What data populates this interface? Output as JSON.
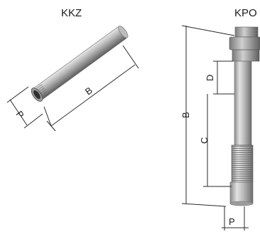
{
  "left_part": {
    "title": "KKZ",
    "dimensions": {
      "diameter": "P",
      "length": "B"
    }
  },
  "right_part": {
    "title": "KPO",
    "dimensions": {
      "total_length": "B",
      "thread_length": "C",
      "offset": "D",
      "diameter": "P"
    }
  },
  "colors": {
    "metal_dark": "#6e6e6e",
    "metal_mid": "#a8a8a8",
    "metal_light": "#e4e4e4",
    "line": "#2a2a2a"
  }
}
